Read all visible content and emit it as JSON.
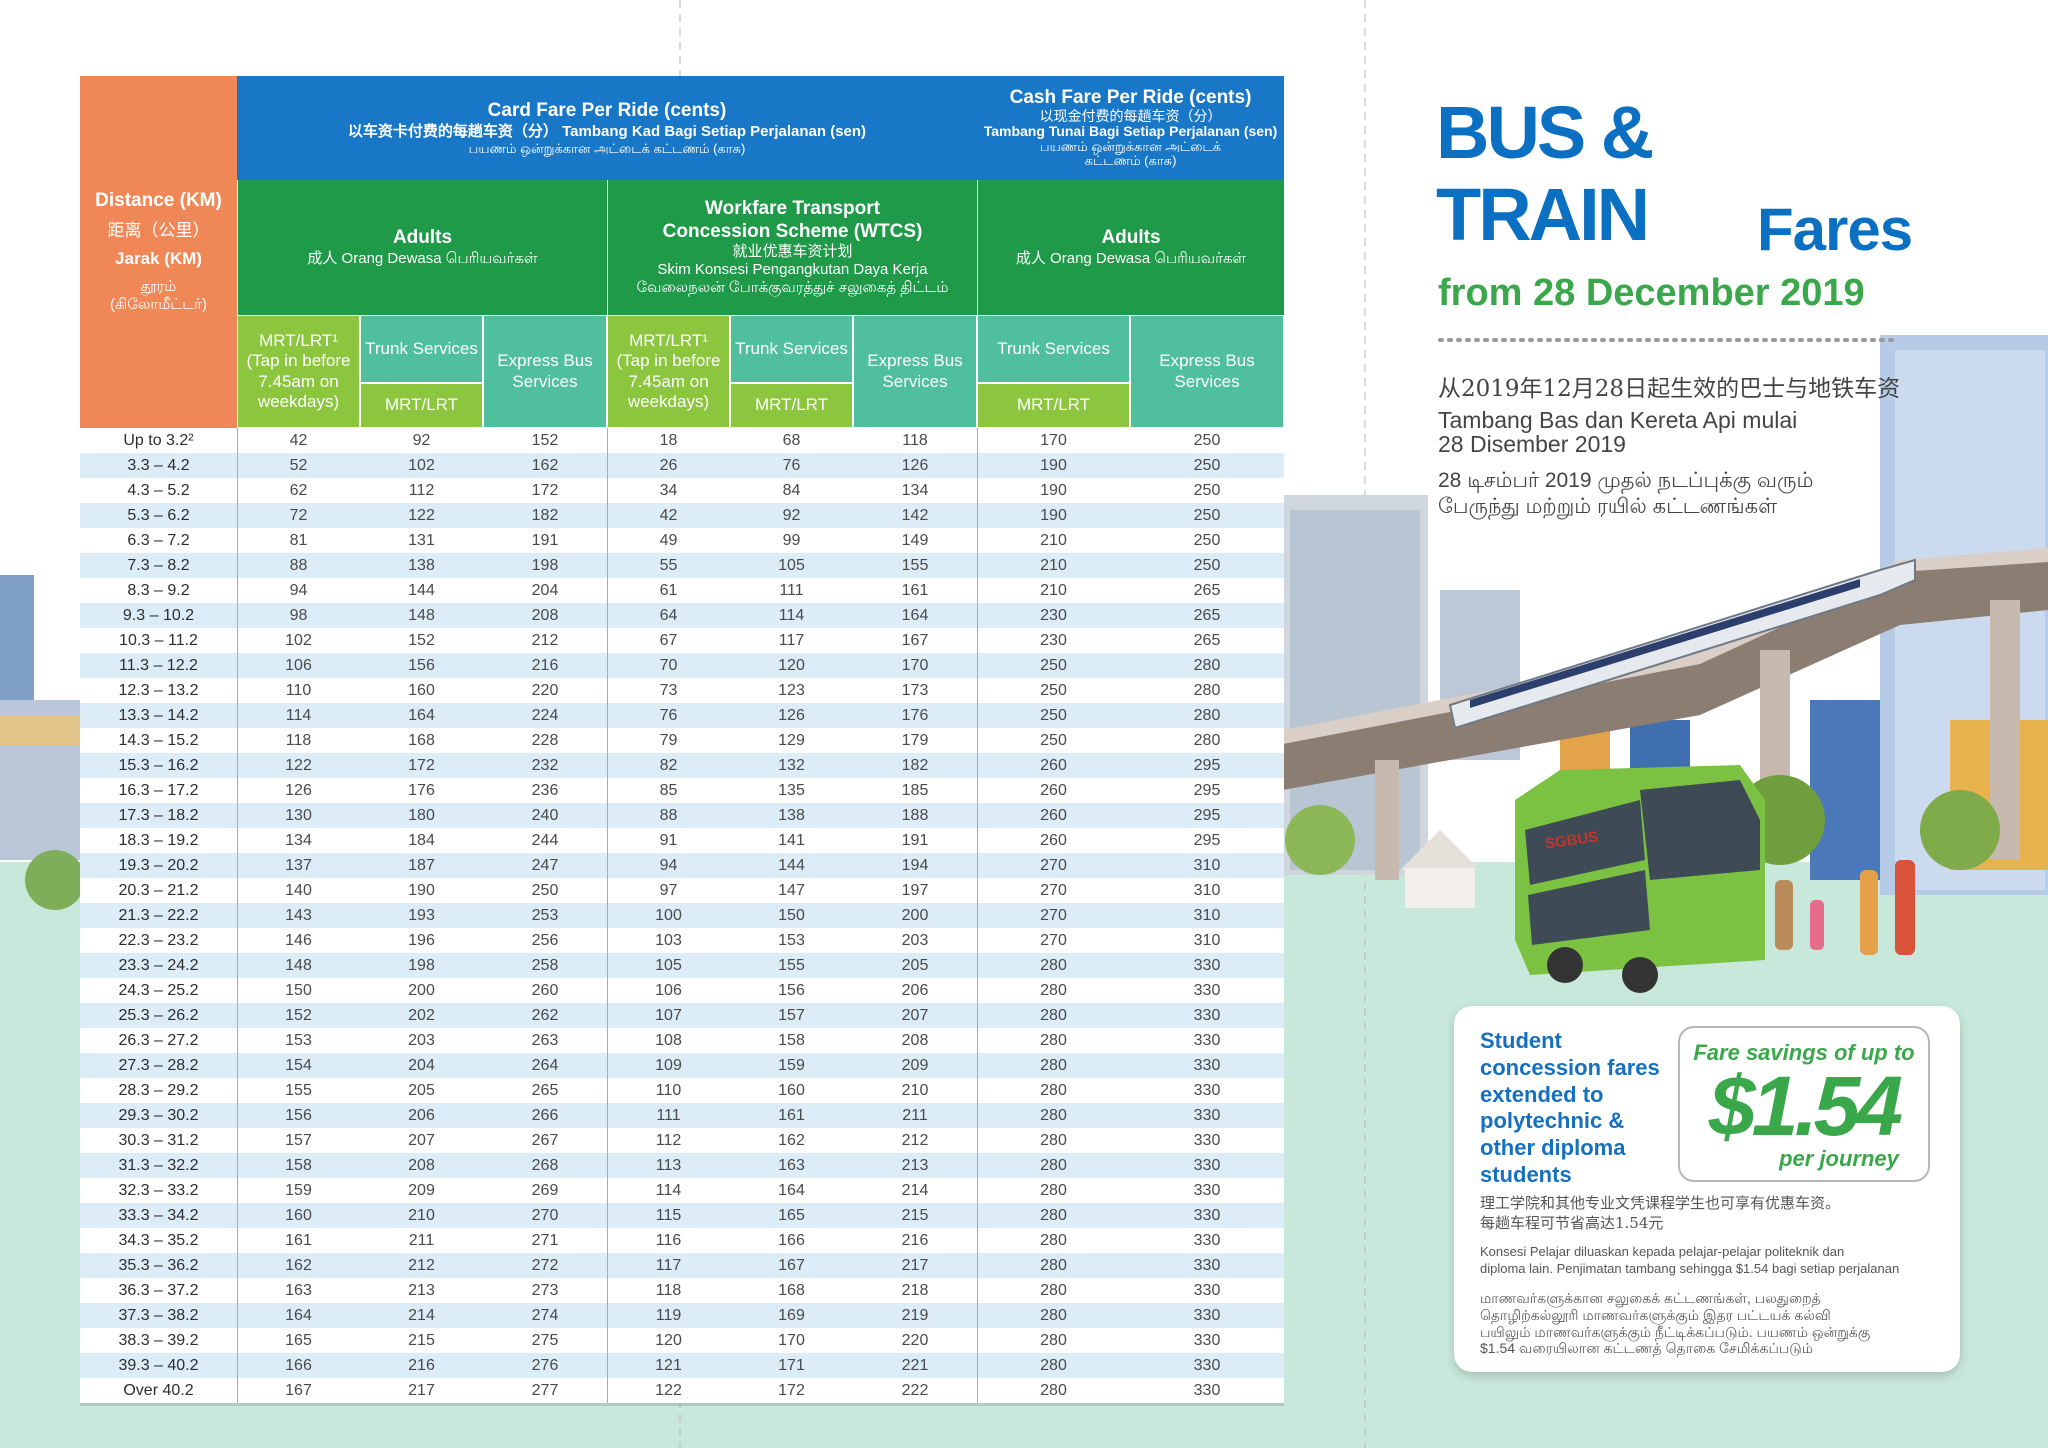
{
  "table": {
    "distance_header": [
      "Distance (KM)",
      "距离（公里）",
      "Jarak (KM)",
      "தூரம்",
      "(கிலோமீட்டர்)"
    ],
    "card_fare_header": [
      "Card Fare Per Ride (cents)",
      "以车资卡付费的每趟车资（分） Tambang Kad Bagi Setiap Perjalanan (sen)",
      "பயணம் ஒன்றுக்கான அட்டைக் கட்டணம் (காசு)"
    ],
    "cash_fare_header": [
      "Cash Fare Per Ride (cents)",
      "以现金付费的每趟车资（分）",
      "Tambang Tunai Bagi Setiap Perjalanan (sen)",
      "பயணம் ஒன்றுக்கான அட்டைக்",
      "கட்டணம் (காசு)"
    ],
    "groups": [
      {
        "title": "Adults",
        "lines": [
          "成人 Orang Dewasa பெரியவர்கள்"
        ]
      },
      {
        "title": "Workfare Transport Concession Scheme (WTCS)",
        "lines": [
          "就业优惠车资计划",
          "Skim Konsesi Pengangkutan Daya Kerja",
          "வேலைநலன் போக்குவரத்துச் சலுகைத் திட்டம்"
        ]
      },
      {
        "title": "Adults",
        "lines": [
          "成人 Orang Dewasa பெரியவர்கள்"
        ]
      }
    ],
    "columns": [
      {
        "label": "MRT/LRT¹ (Tap in before 7.45am on weekdays)"
      },
      {
        "label": "Trunk Services",
        "sub": "MRT/LRT"
      },
      {
        "label": "Express Bus Services"
      },
      {
        "label": "MRT/LRT¹ (Tap in before 7.45am on weekdays)"
      },
      {
        "label": "Trunk Services",
        "sub": "MRT/LRT"
      },
      {
        "label": "Express Bus Services"
      },
      {
        "label": "Trunk Services",
        "sub": "MRT/LRT"
      },
      {
        "label": "Express Bus Services"
      }
    ],
    "rows": [
      [
        "Up to 3.2²",
        42,
        92,
        152,
        18,
        68,
        118,
        170,
        250
      ],
      [
        "3.3 – 4.2",
        52,
        102,
        162,
        26,
        76,
        126,
        190,
        250
      ],
      [
        "4.3 – 5.2",
        62,
        112,
        172,
        34,
        84,
        134,
        190,
        250
      ],
      [
        "5.3 – 6.2",
        72,
        122,
        182,
        42,
        92,
        142,
        190,
        250
      ],
      [
        "6.3 – 7.2",
        81,
        131,
        191,
        49,
        99,
        149,
        210,
        250
      ],
      [
        "7.3 – 8.2",
        88,
        138,
        198,
        55,
        105,
        155,
        210,
        250
      ],
      [
        "8.3 – 9.2",
        94,
        144,
        204,
        61,
        111,
        161,
        210,
        265
      ],
      [
        "9.3 – 10.2",
        98,
        148,
        208,
        64,
        114,
        164,
        230,
        265
      ],
      [
        "10.3 – 11.2",
        102,
        152,
        212,
        67,
        117,
        167,
        230,
        265
      ],
      [
        "11.3 – 12.2",
        106,
        156,
        216,
        70,
        120,
        170,
        250,
        280
      ],
      [
        "12.3 – 13.2",
        110,
        160,
        220,
        73,
        123,
        173,
        250,
        280
      ],
      [
        "13.3 – 14.2",
        114,
        164,
        224,
        76,
        126,
        176,
        250,
        280
      ],
      [
        "14.3 – 15.2",
        118,
        168,
        228,
        79,
        129,
        179,
        250,
        280
      ],
      [
        "15.3 – 16.2",
        122,
        172,
        232,
        82,
        132,
        182,
        260,
        295
      ],
      [
        "16.3 – 17.2",
        126,
        176,
        236,
        85,
        135,
        185,
        260,
        295
      ],
      [
        "17.3 – 18.2",
        130,
        180,
        240,
        88,
        138,
        188,
        260,
        295
      ],
      [
        "18.3 – 19.2",
        134,
        184,
        244,
        91,
        141,
        191,
        260,
        295
      ],
      [
        "19.3 – 20.2",
        137,
        187,
        247,
        94,
        144,
        194,
        270,
        310
      ],
      [
        "20.3 – 21.2",
        140,
        190,
        250,
        97,
        147,
        197,
        270,
        310
      ],
      [
        "21.3 – 22.2",
        143,
        193,
        253,
        100,
        150,
        200,
        270,
        310
      ],
      [
        "22.3 – 23.2",
        146,
        196,
        256,
        103,
        153,
        203,
        270,
        310
      ],
      [
        "23.3 – 24.2",
        148,
        198,
        258,
        105,
        155,
        205,
        280,
        330
      ],
      [
        "24.3 – 25.2",
        150,
        200,
        260,
        106,
        156,
        206,
        280,
        330
      ],
      [
        "25.3 – 26.2",
        152,
        202,
        262,
        107,
        157,
        207,
        280,
        330
      ],
      [
        "26.3 – 27.2",
        153,
        203,
        263,
        108,
        158,
        208,
        280,
        330
      ],
      [
        "27.3 – 28.2",
        154,
        204,
        264,
        109,
        159,
        209,
        280,
        330
      ],
      [
        "28.3 – 29.2",
        155,
        205,
        265,
        110,
        160,
        210,
        280,
        330
      ],
      [
        "29.3 – 30.2",
        156,
        206,
        266,
        111,
        161,
        211,
        280,
        330
      ],
      [
        "30.3 – 31.2",
        157,
        207,
        267,
        112,
        162,
        212,
        280,
        330
      ],
      [
        "31.3 – 32.2",
        158,
        208,
        268,
        113,
        163,
        213,
        280,
        330
      ],
      [
        "32.3 – 33.2",
        159,
        209,
        269,
        114,
        164,
        214,
        280,
        330
      ],
      [
        "33.3 – 34.2",
        160,
        210,
        270,
        115,
        165,
        215,
        280,
        330
      ],
      [
        "34.3 – 35.2",
        161,
        211,
        271,
        116,
        166,
        216,
        280,
        330
      ],
      [
        "35.3 – 36.2",
        162,
        212,
        272,
        117,
        167,
        217,
        280,
        330
      ],
      [
        "36.3 – 37.2",
        163,
        213,
        273,
        118,
        168,
        218,
        280,
        330
      ],
      [
        "37.3 – 38.2",
        164,
        214,
        274,
        119,
        169,
        219,
        280,
        330
      ],
      [
        "38.3 – 39.2",
        165,
        215,
        275,
        120,
        170,
        220,
        280,
        330
      ],
      [
        "39.3 – 40.2",
        166,
        216,
        276,
        121,
        171,
        221,
        280,
        330
      ],
      [
        "Over 40.2",
        167,
        217,
        277,
        122,
        172,
        222,
        280,
        330
      ]
    ]
  },
  "heading": {
    "line1": "BUS &",
    "line2": "TRAIN",
    "line3": "Fares",
    "date": "from 28 December 2019"
  },
  "subtitles": {
    "chinese": "从2019年12月28日起生效的巴士与地铁车资",
    "malay": [
      "Tambang Bas dan Kereta Api mulai",
      "28 Disember 2019"
    ],
    "tamil": [
      "28 டிசம்பர் 2019 முதல் நடப்புக்கு வரும்",
      "பேருந்து மற்றும் ரயில் கட்டணங்கள்"
    ]
  },
  "bus_logo": "SGBUS",
  "student": {
    "headline": [
      "Student",
      "concession fares",
      "extended to",
      "polytechnic &",
      "other diploma",
      "students"
    ],
    "savings_label": "Fare savings of up to",
    "amount": "$1.54",
    "per": "per journey",
    "chinese": [
      "理工学院和其他专业文凭课程学生也可享有优惠车资。",
      "每趟车程可节省高达1.54元"
    ],
    "malay": [
      "Konsesi Pelajar diluaskan kepada pelajar-pelajar politeknik dan",
      "diploma lain. Penjimatan tambang sehingga $1.54 bagi setiap perjalanan"
    ],
    "tamil": [
      "மாணவர்களுக்கான சலுகைக் கட்டணங்கள், பலதுறைத்",
      "தொழிற்கல்லூரி மாணவர்களுக்கும் இதர பட்டயக் கல்வி",
      "பயிலும் மாணவர்களுக்கும் நீட்டிக்கப்படும்.  பயணம் ஒன்றுக்கு",
      "$1.54 வரையிலான கட்டணத் தொகை சேமிக்கப்படும்"
    ]
  }
}
